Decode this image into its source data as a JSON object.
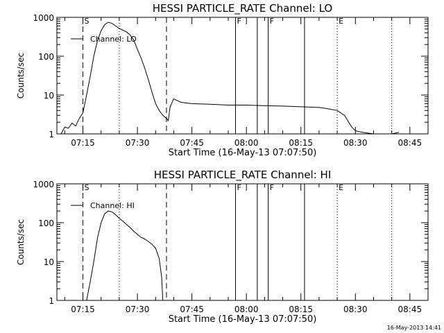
{
  "chart_data": [
    {
      "type": "line",
      "title": "HESSI PARTICLE_RATE Channel: LO",
      "xlabel": "Start Time (16-May-13 07:07:50)",
      "ylabel": "Counts/sec",
      "yscale": "log",
      "ylim": [
        1,
        1000
      ],
      "xlim": [
        "07:07:50",
        "08:50:00"
      ],
      "x_tick_labels": [
        "07:15",
        "07:30",
        "07:45",
        "08:00",
        "08:15",
        "08:30",
        "08:45"
      ],
      "y_tick_labels": [
        "1",
        "10",
        "100",
        "1000"
      ],
      "legend": {
        "placement": "top-left",
        "label": "Channel: LO"
      },
      "markers": [
        {
          "time": "07:15",
          "style": "dashed",
          "label": "S"
        },
        {
          "time": "07:25",
          "style": "dotted",
          "label": ""
        },
        {
          "time": "07:38",
          "style": "dashed",
          "label": ""
        },
        {
          "time": "07:57",
          "style": "solid",
          "label": "F"
        },
        {
          "time": "08:03",
          "style": "solid",
          "label": ""
        },
        {
          "time": "08:06",
          "style": "solid",
          "label": "F"
        },
        {
          "time": "08:16",
          "style": "solid",
          "label": ""
        },
        {
          "time": "08:25",
          "style": "dotted",
          "label": "E"
        },
        {
          "time": "08:40",
          "style": "dotted",
          "label": ""
        }
      ],
      "series": [
        {
          "name": "Channel: LO",
          "x": [
            "07:09",
            "07:10",
            "07:11",
            "07:12",
            "07:13",
            "07:14",
            "07:15",
            "07:16",
            "07:17",
            "07:18",
            "07:19",
            "07:20",
            "07:21",
            "07:22",
            "07:23",
            "07:24",
            "07:25",
            "07:26",
            "07:27",
            "07:28",
            "07:29",
            "07:30",
            "07:31",
            "07:32",
            "07:33",
            "07:34",
            "07:35",
            "07:36",
            "07:37",
            "07:38",
            "07:38:30",
            "07:39",
            "07:40",
            "07:42",
            "07:45",
            "07:50",
            "07:55",
            "08:00",
            "08:05",
            "08:10",
            "08:15",
            "08:20",
            "08:22",
            "08:25",
            "08:27",
            "08:29",
            "08:30",
            "08:32",
            "08:35",
            "08:40",
            "08:42"
          ],
          "y": [
            0.9,
            1.5,
            1.4,
            1.9,
            1.6,
            2.5,
            3.5,
            10,
            30,
            100,
            250,
            450,
            650,
            750,
            700,
            600,
            520,
            470,
            420,
            350,
            260,
            150,
            90,
            50,
            25,
            12,
            6,
            4,
            3,
            2.5,
            2.2,
            5,
            8,
            6.5,
            6,
            5.8,
            5.5,
            5.5,
            5.3,
            5.2,
            5,
            4.8,
            4.5,
            4,
            3,
            1.5,
            1.2,
            1.1,
            0.9,
            1,
            1.1
          ]
        }
      ],
      "stamp": ""
    },
    {
      "type": "line",
      "title": "HESSI PARTICLE_RATE Channel: HI",
      "xlabel": "Start Time (16-May-13 07:07:50)",
      "ylabel": "Counts/sec",
      "yscale": "log",
      "ylim": [
        1,
        1000
      ],
      "xlim": [
        "07:07:50",
        "08:50:00"
      ],
      "x_tick_labels": [
        "07:15",
        "07:30",
        "07:45",
        "08:00",
        "08:15",
        "08:30",
        "08:45"
      ],
      "y_tick_labels": [
        "1",
        "10",
        "100",
        "1000"
      ],
      "legend": {
        "placement": "top-left",
        "label": "Channel: HI"
      },
      "markers": [
        {
          "time": "07:15",
          "style": "dashed",
          "label": "S"
        },
        {
          "time": "07:25",
          "style": "dotted",
          "label": ""
        },
        {
          "time": "07:38",
          "style": "dashed",
          "label": ""
        },
        {
          "time": "07:57",
          "style": "solid",
          "label": "F"
        },
        {
          "time": "08:03",
          "style": "solid",
          "label": ""
        },
        {
          "time": "08:06",
          "style": "solid",
          "label": "F"
        },
        {
          "time": "08:16",
          "style": "solid",
          "label": ""
        },
        {
          "time": "08:25",
          "style": "dotted",
          "label": "E"
        },
        {
          "time": "08:40",
          "style": "dotted",
          "label": ""
        }
      ],
      "series": [
        {
          "name": "Channel: HI",
          "x": [
            "07:16",
            "07:17",
            "07:18",
            "07:19",
            "07:20",
            "07:21",
            "07:22",
            "07:23",
            "07:24",
            "07:25",
            "07:26",
            "07:27",
            "07:28",
            "07:29",
            "07:30",
            "07:31",
            "07:32",
            "07:33",
            "07:34",
            "07:35",
            "07:36",
            "07:36:40",
            "07:37"
          ],
          "y": [
            1,
            3,
            10,
            40,
            100,
            170,
            200,
            190,
            160,
            130,
            110,
            90,
            75,
            60,
            50,
            42,
            38,
            33,
            28,
            22,
            12,
            4,
            1
          ]
        }
      ],
      "stamp": "16-May-2013 14:41"
    }
  ]
}
